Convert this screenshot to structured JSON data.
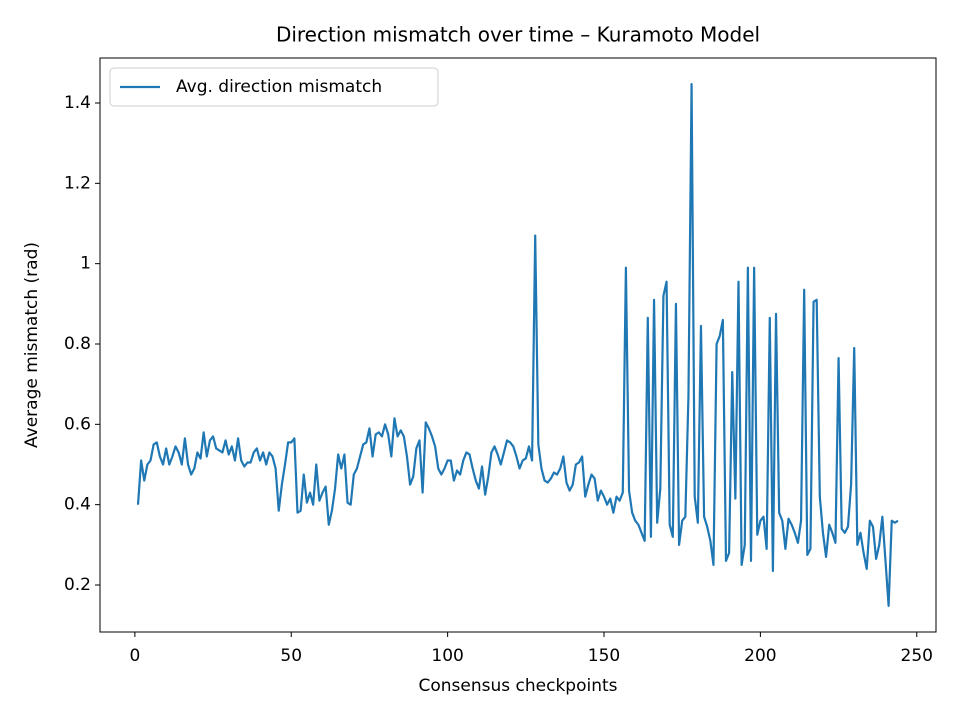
{
  "chart_data": {
    "type": "line",
    "title": "Direction mismatch over time – Kuramoto Model",
    "x_label": "Consensus checkpoints",
    "y_label": "Average mismatch (rad)",
    "x": [
      1,
      2,
      3,
      4,
      5,
      6,
      7,
      8,
      9,
      10,
      11,
      12,
      13,
      14,
      15,
      16,
      17,
      18,
      19,
      20,
      21,
      22,
      23,
      24,
      25,
      26,
      27,
      28,
      29,
      30,
      31,
      32,
      33,
      34,
      35,
      36,
      37,
      38,
      39,
      40,
      41,
      42,
      43,
      44,
      45,
      46,
      47,
      48,
      49,
      50,
      51,
      52,
      53,
      54,
      55,
      56,
      57,
      58,
      59,
      60,
      61,
      62,
      63,
      64,
      65,
      66,
      67,
      68,
      69,
      70,
      71,
      72,
      73,
      74,
      75,
      76,
      77,
      78,
      79,
      80,
      81,
      82,
      83,
      84,
      85,
      86,
      87,
      88,
      89,
      90,
      91,
      92,
      93,
      94,
      95,
      96,
      97,
      98,
      99,
      100,
      101,
      102,
      103,
      104,
      105,
      106,
      107,
      108,
      109,
      110,
      111,
      112,
      113,
      114,
      115,
      116,
      117,
      118,
      119,
      120,
      121,
      122,
      123,
      124,
      125,
      126,
      127,
      128,
      129,
      130,
      131,
      132,
      133,
      134,
      135,
      136,
      137,
      138,
      139,
      140,
      141,
      142,
      143,
      144,
      145,
      146,
      147,
      148,
      149,
      150,
      151,
      152,
      153,
      154,
      155,
      156,
      157,
      158,
      159,
      160,
      161,
      162,
      163,
      164,
      165,
      166,
      167,
      168,
      169,
      170,
      171,
      172,
      173,
      174,
      175,
      176,
      177,
      178,
      179,
      180,
      181,
      182,
      183,
      184,
      185,
      186,
      187,
      188,
      189,
      190,
      191,
      192,
      193,
      194,
      195,
      196,
      197,
      198,
      199,
      200,
      201,
      202,
      203,
      204,
      205,
      206,
      207,
      208,
      209,
      210,
      211,
      212,
      213,
      214,
      215,
      216,
      217,
      218,
      219,
      220,
      221,
      222,
      223,
      224,
      225,
      226,
      227,
      228,
      229,
      230,
      231,
      232,
      233,
      234,
      235,
      236,
      237,
      238,
      239,
      240,
      241,
      242,
      243,
      244
    ],
    "series": [
      {
        "name": "Avg. direction mismatch",
        "color": "#1f77b4",
        "values": [
          0.4,
          0.51,
          0.46,
          0.5,
          0.51,
          0.55,
          0.555,
          0.52,
          0.5,
          0.54,
          0.5,
          0.52,
          0.545,
          0.53,
          0.5,
          0.565,
          0.5,
          0.475,
          0.49,
          0.53,
          0.515,
          0.58,
          0.52,
          0.56,
          0.57,
          0.54,
          0.535,
          0.53,
          0.56,
          0.525,
          0.545,
          0.51,
          0.565,
          0.51,
          0.495,
          0.505,
          0.505,
          0.53,
          0.54,
          0.51,
          0.53,
          0.5,
          0.53,
          0.52,
          0.49,
          0.385,
          0.45,
          0.5,
          0.555,
          0.555,
          0.565,
          0.38,
          0.385,
          0.475,
          0.405,
          0.43,
          0.4,
          0.5,
          0.41,
          0.43,
          0.445,
          0.35,
          0.385,
          0.44,
          0.525,
          0.49,
          0.525,
          0.405,
          0.4,
          0.475,
          0.49,
          0.52,
          0.55,
          0.555,
          0.59,
          0.52,
          0.575,
          0.58,
          0.57,
          0.6,
          0.575,
          0.52,
          0.615,
          0.57,
          0.585,
          0.57,
          0.52,
          0.45,
          0.47,
          0.54,
          0.56,
          0.43,
          0.605,
          0.59,
          0.57,
          0.545,
          0.49,
          0.475,
          0.49,
          0.51,
          0.51,
          0.46,
          0.485,
          0.475,
          0.51,
          0.53,
          0.525,
          0.49,
          0.46,
          0.44,
          0.495,
          0.425,
          0.47,
          0.53,
          0.545,
          0.525,
          0.5,
          0.53,
          0.56,
          0.555,
          0.545,
          0.52,
          0.49,
          0.51,
          0.515,
          0.545,
          0.51,
          1.07,
          0.55,
          0.49,
          0.46,
          0.455,
          0.465,
          0.48,
          0.475,
          0.49,
          0.52,
          0.455,
          0.435,
          0.45,
          0.5,
          0.505,
          0.52,
          0.42,
          0.45,
          0.475,
          0.465,
          0.41,
          0.435,
          0.42,
          0.4,
          0.415,
          0.38,
          0.42,
          0.41,
          0.43,
          0.99,
          0.435,
          0.38,
          0.36,
          0.35,
          0.33,
          0.31,
          0.865,
          0.32,
          0.91,
          0.355,
          0.44,
          0.92,
          0.955,
          0.35,
          0.32,
          0.9,
          0.3,
          0.36,
          0.37,
          0.67,
          1.447,
          0.42,
          0.355,
          0.845,
          0.37,
          0.345,
          0.31,
          0.25,
          0.8,
          0.82,
          0.86,
          0.26,
          0.28,
          0.73,
          0.415,
          0.955,
          0.25,
          0.3,
          0.99,
          0.26,
          0.99,
          0.325,
          0.36,
          0.37,
          0.29,
          0.865,
          0.235,
          0.875,
          0.38,
          0.36,
          0.29,
          0.365,
          0.35,
          0.33,
          0.305,
          0.36,
          0.935,
          0.275,
          0.29,
          0.905,
          0.91,
          0.42,
          0.33,
          0.27,
          0.35,
          0.33,
          0.305,
          0.765,
          0.34,
          0.33,
          0.345,
          0.45,
          0.79,
          0.3,
          0.33,
          0.28,
          0.24,
          0.36,
          0.345,
          0.265,
          0.3,
          0.37,
          0.26,
          0.148,
          0.36,
          0.355,
          0.36
        ]
      }
    ],
    "xlim": [
      -11.15,
      256.15
    ],
    "ylim": [
      0.083,
      1.512
    ],
    "xticks": [
      0,
      50,
      100,
      150,
      200,
      250
    ],
    "yticks": [
      0.2,
      0.4,
      0.6,
      0.8,
      1.0,
      1.2,
      1.4
    ],
    "legend": "upper left",
    "grid": false
  }
}
